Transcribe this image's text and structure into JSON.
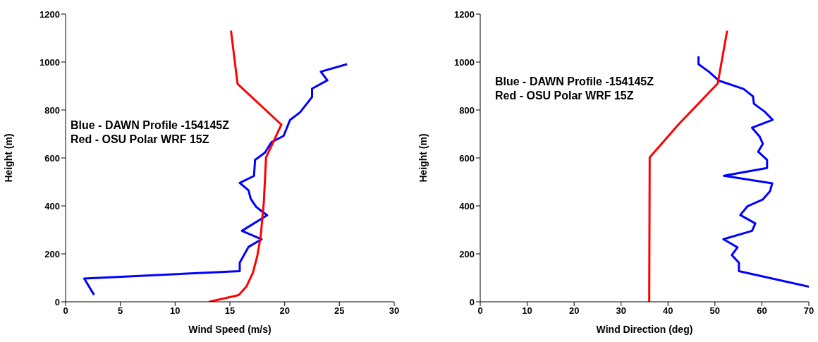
{
  "chart_data": [
    {
      "type": "line",
      "xlabel": "Wind Speed (m/s)",
      "ylabel": "Height (m)",
      "xlim": [
        0,
        30
      ],
      "xticks": [
        0,
        5,
        10,
        15,
        20,
        25,
        30
      ],
      "ylim": [
        0,
        1200
      ],
      "yticks": [
        0,
        200,
        400,
        600,
        800,
        1000,
        1200
      ],
      "grid": false,
      "marker": "none",
      "line_style": "solid",
      "annotations": [
        "Blue - DAWN Profile -154145Z",
        "Red - OSU Polar WRF 15Z"
      ],
      "series": [
        {
          "color": "#0000ff",
          "x": [
            2.6,
            1.7,
            15.9,
            15.9,
            16.7,
            17.9,
            16.1,
            18.4,
            17.9,
            17.4,
            16.9,
            16.7,
            15.9,
            17.2,
            17.3,
            18.2,
            18.8,
            19.9,
            20.5,
            21.4,
            22.5,
            22.5,
            23.9,
            23.3,
            25.7
          ],
          "values": [
            29,
            97,
            128,
            163,
            229,
            261,
            296,
            361,
            378,
            396,
            430,
            465,
            496,
            525,
            592,
            622,
            666,
            692,
            759,
            790,
            854,
            889,
            924,
            960,
            991
          ]
        },
        {
          "color": "#ff0000",
          "x": [
            13.1,
            15.8,
            16.5,
            17.1,
            17.5,
            17.8,
            18.1,
            18.3,
            19.7,
            15.7,
            15.1
          ],
          "values": [
            0,
            28,
            63,
            121,
            191,
            269,
            416,
            602,
            739,
            909,
            1131
          ]
        }
      ]
    },
    {
      "type": "line",
      "xlabel": "Wind Direction (deg)",
      "ylabel": "Height (m)",
      "xlim": [
        0,
        70
      ],
      "xticks": [
        0,
        10,
        20,
        30,
        40,
        50,
        60,
        70
      ],
      "ylim": [
        0,
        1200
      ],
      "yticks": [
        0,
        200,
        400,
        600,
        800,
        1000,
        1200
      ],
      "grid": false,
      "marker": "none",
      "line_style": "solid",
      "annotations": [
        "Blue - DAWN Profile -154145Z",
        "Red - OSU Polar WRF 15Z"
      ],
      "series": [
        {
          "color": "#0000ff",
          "x": [
            70,
            55.1,
            55.1,
            53.6,
            54.8,
            51.8,
            57.9,
            58.6,
            55.4,
            56.9,
            60.2,
            61.7,
            62.2,
            51.9,
            61.1,
            61.1,
            59.2,
            60.2,
            59.5,
            57.9,
            62.3,
            60.6,
            58.3,
            58.1,
            56.1,
            50.9,
            48.7,
            46.5,
            46.5
          ],
          "values": [
            63,
            128,
            163,
            195,
            227,
            261,
            296,
            327,
            362,
            398,
            427,
            460,
            494,
            526,
            558,
            592,
            626,
            659,
            690,
            726,
            759,
            793,
            826,
            857,
            888,
            922,
            960,
            991,
            1024
          ]
        },
        {
          "color": "#ff0000",
          "x": [
            36.0,
            36.1,
            42.2,
            50.6,
            52.6
          ],
          "values": [
            0,
            602,
            739,
            911,
            1131
          ]
        }
      ]
    }
  ]
}
